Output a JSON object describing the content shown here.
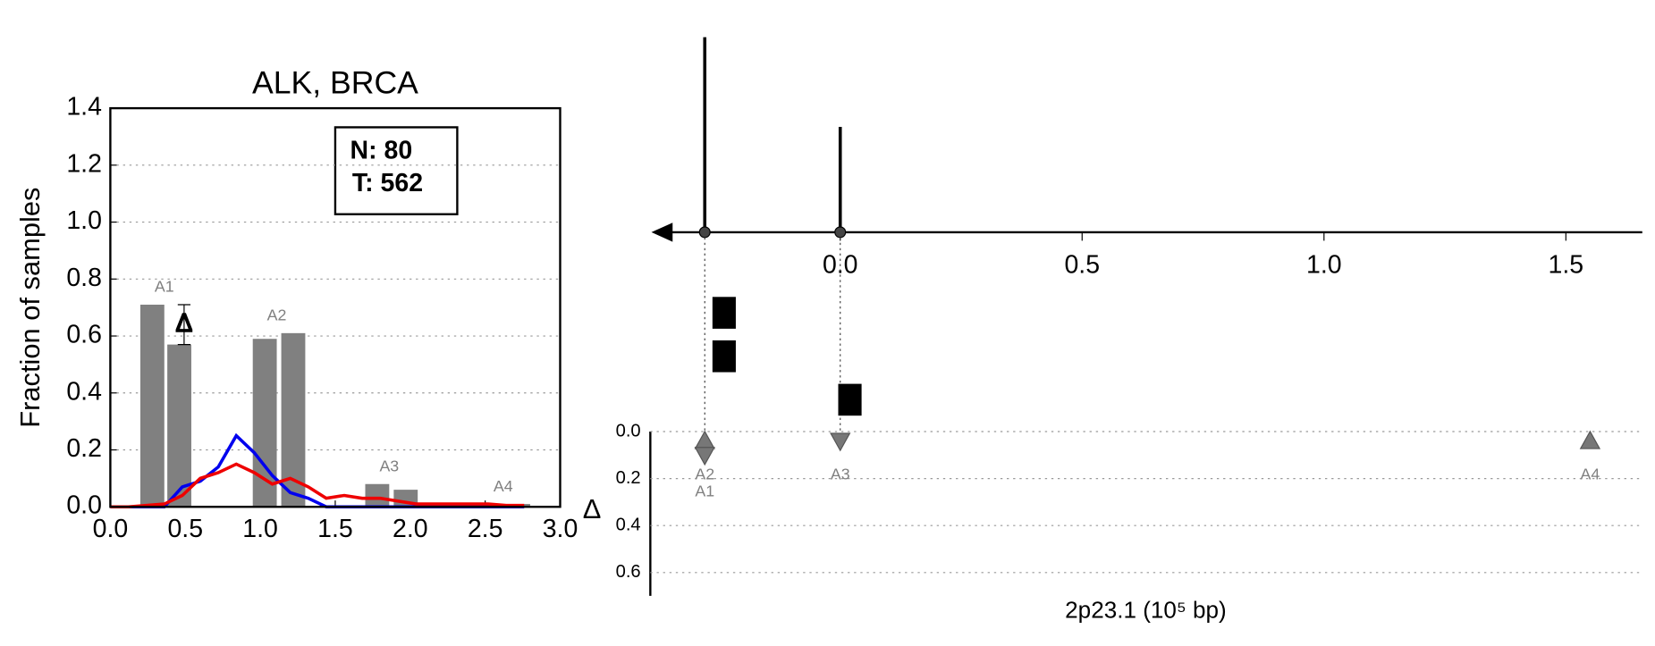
{
  "chart_data": [
    {
      "type": "bar",
      "title": "ALK, BRCA",
      "ylabel": "Fraction of samples",
      "annotation": [
        "N: 80",
        "T: 562"
      ],
      "xlim": [
        0,
        3
      ],
      "xticks": [
        {
          "value": 0,
          "label": "0.0"
        },
        0.5,
        {
          "value": 1,
          "label": "1.0"
        },
        1.5,
        {
          "value": 2,
          "label": "2.0"
        },
        2.5,
        {
          "value": 3,
          "label": "3.0"
        }
      ],
      "ylim": [
        0,
        1.4
      ],
      "yticks": [
        {
          "value": 0,
          "label": "0.0"
        },
        0.2,
        0.4,
        0.6,
        0.8,
        {
          "value": 1,
          "label": "1.0"
        },
        1.2,
        1.4
      ],
      "grid": true,
      "bar_color": "#808080",
      "groups": [
        {
          "label": "A1",
          "x": [
            0.2,
            0.38
          ],
          "values": [
            0.71,
            0.57
          ],
          "delta_label": "Δ"
        },
        {
          "label": "A2",
          "x": [
            0.95,
            1.14
          ],
          "values": [
            0.59,
            0.61
          ]
        },
        {
          "label": "A3",
          "x": [
            1.7,
            1.89
          ],
          "values": [
            0.08,
            0.06
          ]
        },
        {
          "label": "A4",
          "x": [
            2.46,
            2.64
          ],
          "values": [
            0.01,
            0.01
          ]
        }
      ],
      "x": [
        0.0,
        0.12,
        0.24,
        0.36,
        0.48,
        0.6,
        0.72,
        0.84,
        0.96,
        1.08,
        1.2,
        1.32,
        1.44,
        1.56,
        1.68,
        1.8,
        1.92,
        2.04,
        2.16,
        2.28,
        2.4,
        2.52,
        2.64,
        2.76
      ],
      "series": [
        {
          "color": "#0000ee",
          "values": [
            0,
            0,
            0,
            0,
            0.07,
            0.09,
            0.14,
            0.25,
            0.19,
            0.11,
            0.05,
            0.03,
            0,
            0,
            0,
            0,
            0,
            0,
            0,
            0,
            0,
            0,
            0,
            0
          ]
        },
        {
          "color": "#ee0000",
          "values": [
            0,
            0,
            0.005,
            0.01,
            0.04,
            0.1,
            0.12,
            0.15,
            0.12,
            0.08,
            0.1,
            0.07,
            0.03,
            0.04,
            0.03,
            0.03,
            0.02,
            0.01,
            0.01,
            0.01,
            0.01,
            0.01,
            0.005,
            0.005
          ]
        }
      ]
    },
    {
      "type": "genome",
      "xlabel": "2p23.1 (10⁵ bp)",
      "ylabel": "Δ",
      "xticks": [
        {
          "value": 0,
          "label": "0.0"
        },
        0.5,
        {
          "value": 1,
          "label": "1.0"
        },
        1.5
      ],
      "lollipops": {
        "x": [
          -0.28,
          0.0
        ],
        "values": [
          1.0,
          0.54
        ]
      },
      "domains": {
        "x": [
          -0.24,
          -0.24,
          0.02
        ]
      },
      "ylim": [
        0,
        0.7
      ],
      "yticks": [
        {
          "value": 0,
          "label": "0.0"
        },
        0.2,
        0.4,
        0.6
      ],
      "grid": true,
      "markers": [
        {
          "label": "A2",
          "x": -0.28,
          "delta": 0.04,
          "direction": "up"
        },
        {
          "label": "A1",
          "x": -0.28,
          "delta": 0.1,
          "direction": "down"
        },
        {
          "label": "A3",
          "x": 0.0,
          "delta": 0.04,
          "direction": "down"
        },
        {
          "label": "A4",
          "x": 1.55,
          "delta": 0.04,
          "direction": "up"
        }
      ]
    }
  ]
}
